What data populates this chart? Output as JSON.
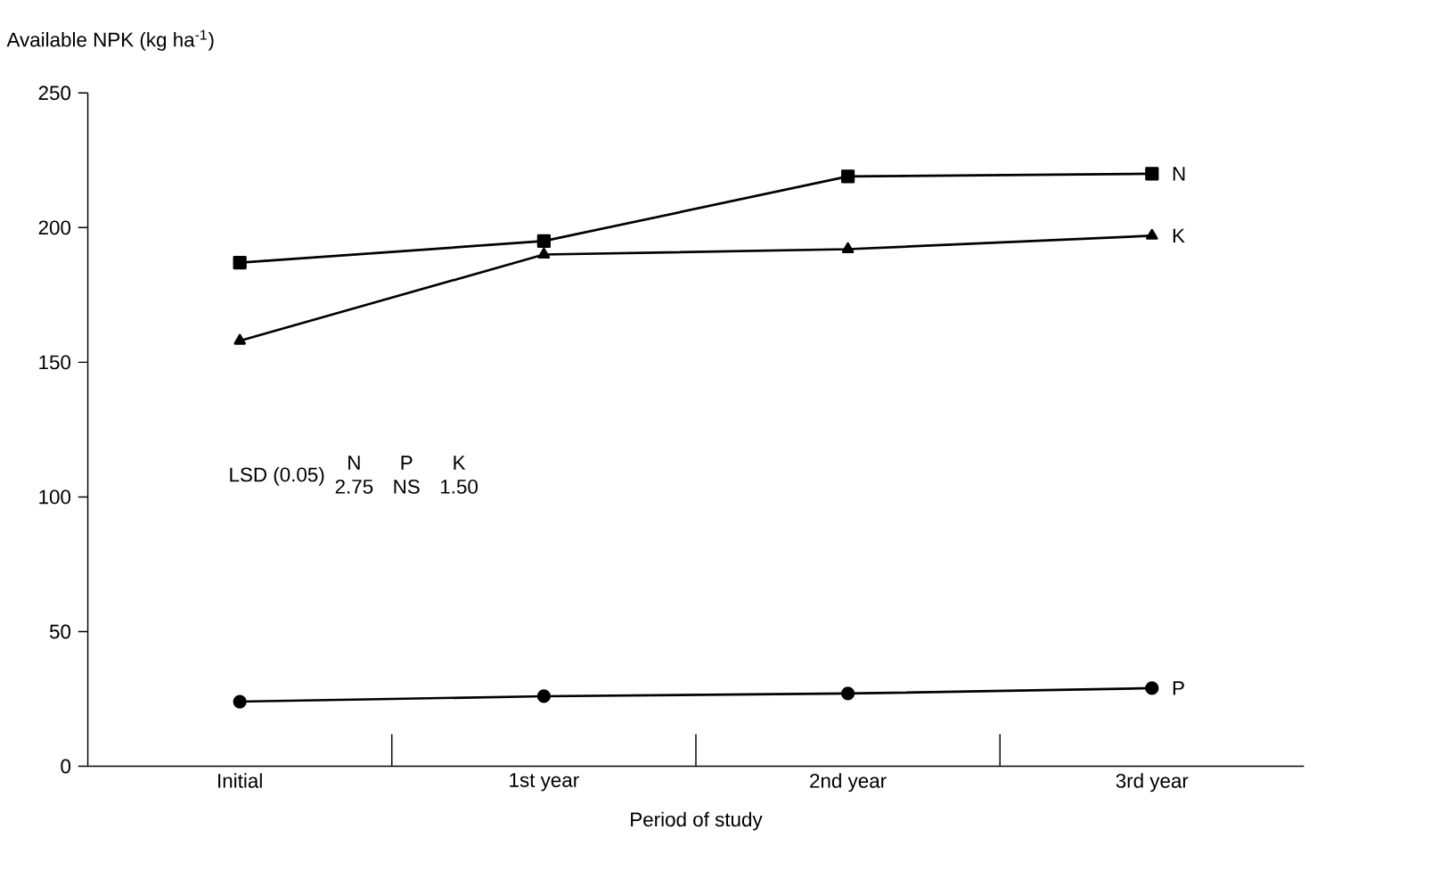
{
  "chart_data": {
    "type": "line",
    "xlabel": "Period of study",
    "ylabel": "Available NPK (kg ha$^{-1}$)",
    "categories": [
      "Initial",
      "1st year",
      "2nd year",
      "3rd year"
    ],
    "series": [
      {
        "name": "N",
        "color": "#000000",
        "marker": "square",
        "values": [
          187,
          195,
          219,
          220
        ]
      },
      {
        "name": "K",
        "color": "#000000",
        "marker": "triangle",
        "values": [
          158,
          190,
          192,
          197
        ]
      },
      {
        "name": "P",
        "color": "#000000",
        "marker": "circle",
        "values": [
          24,
          26,
          27,
          29
        ]
      }
    ],
    "ylim": [
      0,
      250
    ],
    "yticks": [
      0,
      50,
      100,
      150,
      200,
      250
    ],
    "grid": false,
    "legend": false,
    "line_style": "solid",
    "annotations": [
      "LSD (0.05)",
      "N",
      "2.75",
      "P",
      "NS",
      "K",
      "1.50"
    ]
  }
}
